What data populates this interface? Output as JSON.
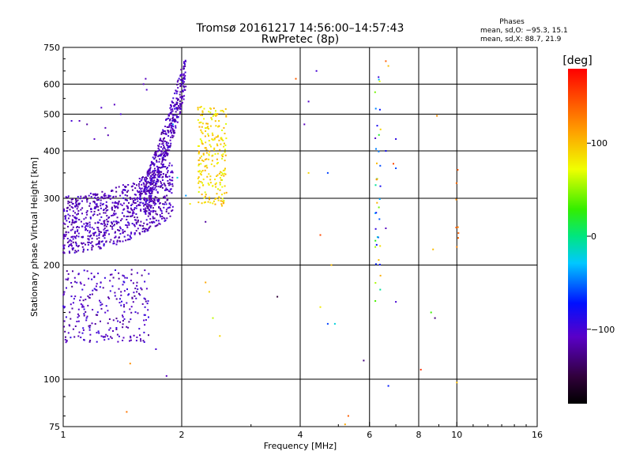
{
  "chart_data": {
    "type": "scatter",
    "title": "Tromsø 20161217 14:56:00–14:57:43",
    "subtitle": "RwPretec (8p)",
    "xlabel": "Frequency [MHz]",
    "ylabel": "Stationary phase Virtual Height [km]",
    "x_scale": "log",
    "y_scale": "log",
    "xlim": [
      1,
      16
    ],
    "ylim": [
      75,
      750
    ],
    "x_ticks": [
      1,
      2,
      4,
      6,
      8,
      10,
      16
    ],
    "x_tick_labels": [
      "1",
      "2",
      "4",
      "6",
      "8",
      "10",
      "16"
    ],
    "y_ticks": [
      75,
      100,
      200,
      300,
      400,
      500,
      600,
      750
    ],
    "y_tick_labels": [
      "75",
      "100",
      "200",
      "300",
      "400",
      "500",
      "600",
      "750"
    ],
    "grid_x": [
      2,
      4,
      6,
      8,
      10
    ],
    "grid_y": [
      100,
      200,
      300,
      400,
      500,
      600
    ],
    "phases_header": "Phases",
    "phases_stats": [
      "mean, sd,O: −95.3, 15.1",
      "mean, sd,X:  88.7, 21.9"
    ],
    "colorbar": {
      "label": "[deg]",
      "min": -180,
      "max": 180,
      "ticks": [
        100,
        0,
        -100
      ],
      "tick_labels": [
        "100",
        "0",
        "−100"
      ]
    },
    "scatter_clusters": [
      {
        "name_hint": "F-low-blue",
        "x_range": [
          1.0,
          1.9
        ],
        "y_range": [
          215,
          320
        ],
        "phase_range": [
          -125,
          -95
        ],
        "n": 850,
        "shape": "curve_low"
      },
      {
        "name_hint": "F-rise-blue",
        "x_range": [
          1.6,
          2.05
        ],
        "y_range": [
          300,
          640
        ],
        "phase_range": [
          -125,
          -95
        ],
        "n": 420,
        "shape": "curve_rise"
      },
      {
        "name_hint": "E-blue",
        "x_range": [
          1.0,
          1.65
        ],
        "y_range": [
          125,
          195
        ],
        "phase_range": [
          -125,
          -90
        ],
        "n": 260,
        "shape": "box"
      },
      {
        "name_hint": "X-yellow",
        "x_range": [
          2.2,
          2.6
        ],
        "y_range": [
          285,
          530
        ],
        "phase_range": [
          65,
          110
        ],
        "n": 230,
        "shape": "box"
      },
      {
        "name_hint": "6MHz-band",
        "x_range": [
          6.2,
          6.4
        ],
        "y_range": [
          160,
          630
        ],
        "phase_range": [
          -110,
          120
        ],
        "n": 40,
        "shape": "box"
      },
      {
        "name_hint": "10MHz-band",
        "x_range": [
          9.95,
          10.1
        ],
        "y_range": [
          200,
          380
        ],
        "phase_range": [
          110,
          150
        ],
        "n": 8,
        "shape": "box"
      }
    ],
    "scatter_points": [
      {
        "x": 3.9,
        "y": 620,
        "p": 140
      },
      {
        "x": 4.4,
        "y": 650,
        "p": -100
      },
      {
        "x": 4.2,
        "y": 540,
        "p": -105
      },
      {
        "x": 4.1,
        "y": 470,
        "p": -110
      },
      {
        "x": 4.2,
        "y": 350,
        "p": 90
      },
      {
        "x": 4.7,
        "y": 350,
        "p": -60
      },
      {
        "x": 4.5,
        "y": 240,
        "p": 150
      },
      {
        "x": 4.8,
        "y": 200,
        "p": 100
      },
      {
        "x": 4.7,
        "y": 140,
        "p": -60
      },
      {
        "x": 4.9,
        "y": 140,
        "p": -20
      },
      {
        "x": 4.5,
        "y": 155,
        "p": 80
      },
      {
        "x": 3.5,
        "y": 165,
        "p": -150
      },
      {
        "x": 5.3,
        "y": 80,
        "p": 140
      },
      {
        "x": 5.2,
        "y": 76,
        "p": 110
      },
      {
        "x": 5.8,
        "y": 112,
        "p": -130
      },
      {
        "x": 6.7,
        "y": 96,
        "p": -70
      },
      {
        "x": 6.6,
        "y": 690,
        "p": 140
      },
      {
        "x": 6.7,
        "y": 670,
        "p": 100
      },
      {
        "x": 7.0,
        "y": 430,
        "p": -90
      },
      {
        "x": 7.0,
        "y": 360,
        "p": -60
      },
      {
        "x": 6.9,
        "y": 370,
        "p": 150
      },
      {
        "x": 6.6,
        "y": 250,
        "p": -110
      },
      {
        "x": 7.0,
        "y": 160,
        "p": -100
      },
      {
        "x": 6.6,
        "y": 400,
        "p": -80
      },
      {
        "x": 8.7,
        "y": 220,
        "p": 100
      },
      {
        "x": 8.6,
        "y": 150,
        "p": 30
      },
      {
        "x": 8.8,
        "y": 145,
        "p": -130
      },
      {
        "x": 8.9,
        "y": 495,
        "p": 120
      },
      {
        "x": 8.1,
        "y": 106,
        "p": 160
      },
      {
        "x": 10.0,
        "y": 98,
        "p": 100
      },
      {
        "x": 2.1,
        "y": 290,
        "p": 80
      },
      {
        "x": 2.2,
        "y": 520,
        "p": 100
      },
      {
        "x": 2.3,
        "y": 180,
        "p": 110
      },
      {
        "x": 2.35,
        "y": 170,
        "p": 90
      },
      {
        "x": 2.4,
        "y": 145,
        "p": 60
      },
      {
        "x": 2.5,
        "y": 130,
        "p": 90
      },
      {
        "x": 2.3,
        "y": 260,
        "p": -120
      },
      {
        "x": 2.05,
        "y": 305,
        "p": -40
      },
      {
        "x": 1.83,
        "y": 102,
        "p": -110
      },
      {
        "x": 1.45,
        "y": 82,
        "p": 130
      },
      {
        "x": 1.48,
        "y": 110,
        "p": 120
      },
      {
        "x": 1.72,
        "y": 120,
        "p": -100
      },
      {
        "x": 1.9,
        "y": 470,
        "p": -40
      },
      {
        "x": 1.95,
        "y": 340,
        "p": -20
      },
      {
        "x": 1.05,
        "y": 480,
        "p": -100
      },
      {
        "x": 1.1,
        "y": 480,
        "p": -110
      },
      {
        "x": 1.15,
        "y": 470,
        "p": -120
      },
      {
        "x": 1.25,
        "y": 520,
        "p": -105
      },
      {
        "x": 1.35,
        "y": 530,
        "p": -110
      },
      {
        "x": 1.4,
        "y": 500,
        "p": -100
      },
      {
        "x": 1.3,
        "y": 440,
        "p": -115
      },
      {
        "x": 1.2,
        "y": 430,
        "p": -108
      },
      {
        "x": 1.28,
        "y": 460,
        "p": -112
      },
      {
        "x": 1.6,
        "y": 600,
        "p": -110
      },
      {
        "x": 1.62,
        "y": 620,
        "p": -110
      },
      {
        "x": 1.63,
        "y": 580,
        "p": -105
      }
    ]
  }
}
